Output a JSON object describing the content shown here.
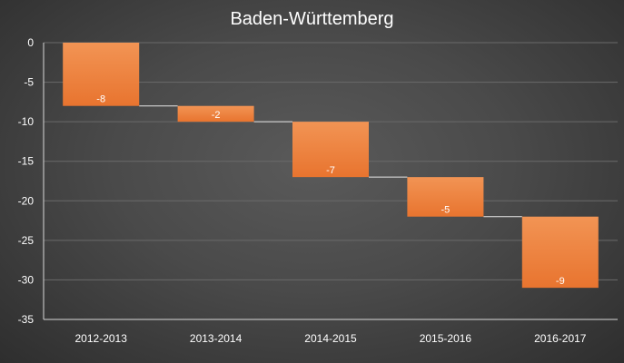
{
  "chart_data": {
    "type": "bar",
    "subtype": "waterfall",
    "title": "Baden-Württemberg",
    "xlabel": "",
    "ylabel": "",
    "categories": [
      "2012-2013",
      "2013-2014",
      "2014-2015",
      "2015-2016",
      "2016-2017"
    ],
    "values": [
      -8,
      -2,
      -7,
      -5,
      -9
    ],
    "data_labels": [
      "-8",
      "-2",
      "-7",
      "-5",
      "-9"
    ],
    "ylim": [
      -35,
      0
    ],
    "yticks": [
      0,
      -5,
      -10,
      -15,
      -20,
      -25,
      -30,
      -35
    ],
    "ytick_labels": [
      "0",
      "-5",
      "-10",
      "-15",
      "-20",
      "-25",
      "-30",
      "-35"
    ],
    "grid": true,
    "legend": "none",
    "colors": {
      "bar_top": "#f29454",
      "bar_bottom": "#e8742f",
      "connector": "#e6e6e6",
      "grid": "#6a6a6a",
      "axis": "#d9d9d9",
      "text": "#ffffff"
    }
  }
}
